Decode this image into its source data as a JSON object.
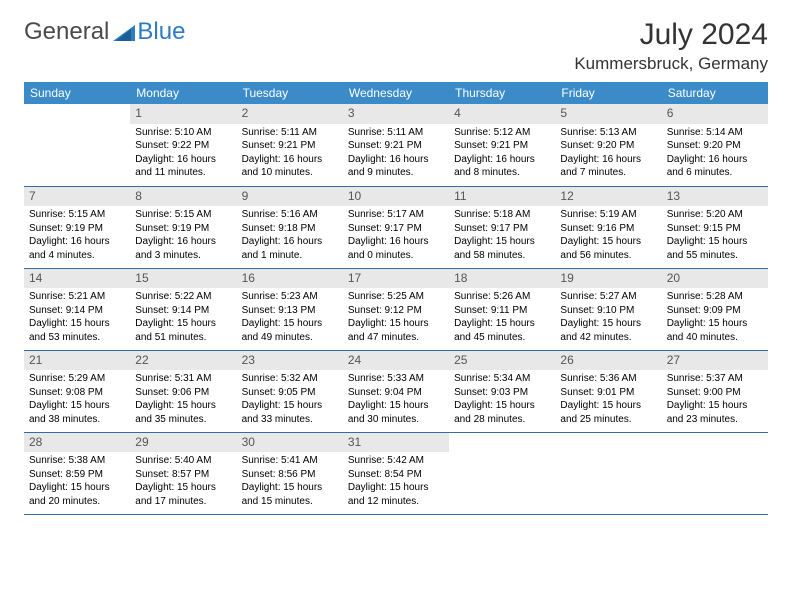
{
  "logo": {
    "text1": "General",
    "text2": "Blue"
  },
  "title": "July 2024",
  "location": "Kummersbruck, Germany",
  "day_headers": [
    "Sunday",
    "Monday",
    "Tuesday",
    "Wednesday",
    "Thursday",
    "Friday",
    "Saturday"
  ],
  "colors": {
    "header_bg": "#3b8bc8",
    "header_fg": "#ffffff",
    "daynum_bg": "#e8e8e8",
    "row_border": "#2f6ea5",
    "logo_blue": "#2f7bbf"
  },
  "weeks": [
    [
      null,
      {
        "n": "1",
        "sunrise": "5:10 AM",
        "sunset": "9:22 PM",
        "daylight": "16 hours and 11 minutes."
      },
      {
        "n": "2",
        "sunrise": "5:11 AM",
        "sunset": "9:21 PM",
        "daylight": "16 hours and 10 minutes."
      },
      {
        "n": "3",
        "sunrise": "5:11 AM",
        "sunset": "9:21 PM",
        "daylight": "16 hours and 9 minutes."
      },
      {
        "n": "4",
        "sunrise": "5:12 AM",
        "sunset": "9:21 PM",
        "daylight": "16 hours and 8 minutes."
      },
      {
        "n": "5",
        "sunrise": "5:13 AM",
        "sunset": "9:20 PM",
        "daylight": "16 hours and 7 minutes."
      },
      {
        "n": "6",
        "sunrise": "5:14 AM",
        "sunset": "9:20 PM",
        "daylight": "16 hours and 6 minutes."
      }
    ],
    [
      {
        "n": "7",
        "sunrise": "5:15 AM",
        "sunset": "9:19 PM",
        "daylight": "16 hours and 4 minutes."
      },
      {
        "n": "8",
        "sunrise": "5:15 AM",
        "sunset": "9:19 PM",
        "daylight": "16 hours and 3 minutes."
      },
      {
        "n": "9",
        "sunrise": "5:16 AM",
        "sunset": "9:18 PM",
        "daylight": "16 hours and 1 minute."
      },
      {
        "n": "10",
        "sunrise": "5:17 AM",
        "sunset": "9:17 PM",
        "daylight": "16 hours and 0 minutes."
      },
      {
        "n": "11",
        "sunrise": "5:18 AM",
        "sunset": "9:17 PM",
        "daylight": "15 hours and 58 minutes."
      },
      {
        "n": "12",
        "sunrise": "5:19 AM",
        "sunset": "9:16 PM",
        "daylight": "15 hours and 56 minutes."
      },
      {
        "n": "13",
        "sunrise": "5:20 AM",
        "sunset": "9:15 PM",
        "daylight": "15 hours and 55 minutes."
      }
    ],
    [
      {
        "n": "14",
        "sunrise": "5:21 AM",
        "sunset": "9:14 PM",
        "daylight": "15 hours and 53 minutes."
      },
      {
        "n": "15",
        "sunrise": "5:22 AM",
        "sunset": "9:14 PM",
        "daylight": "15 hours and 51 minutes."
      },
      {
        "n": "16",
        "sunrise": "5:23 AM",
        "sunset": "9:13 PM",
        "daylight": "15 hours and 49 minutes."
      },
      {
        "n": "17",
        "sunrise": "5:25 AM",
        "sunset": "9:12 PM",
        "daylight": "15 hours and 47 minutes."
      },
      {
        "n": "18",
        "sunrise": "5:26 AM",
        "sunset": "9:11 PM",
        "daylight": "15 hours and 45 minutes."
      },
      {
        "n": "19",
        "sunrise": "5:27 AM",
        "sunset": "9:10 PM",
        "daylight": "15 hours and 42 minutes."
      },
      {
        "n": "20",
        "sunrise": "5:28 AM",
        "sunset": "9:09 PM",
        "daylight": "15 hours and 40 minutes."
      }
    ],
    [
      {
        "n": "21",
        "sunrise": "5:29 AM",
        "sunset": "9:08 PM",
        "daylight": "15 hours and 38 minutes."
      },
      {
        "n": "22",
        "sunrise": "5:31 AM",
        "sunset": "9:06 PM",
        "daylight": "15 hours and 35 minutes."
      },
      {
        "n": "23",
        "sunrise": "5:32 AM",
        "sunset": "9:05 PM",
        "daylight": "15 hours and 33 minutes."
      },
      {
        "n": "24",
        "sunrise": "5:33 AM",
        "sunset": "9:04 PM",
        "daylight": "15 hours and 30 minutes."
      },
      {
        "n": "25",
        "sunrise": "5:34 AM",
        "sunset": "9:03 PM",
        "daylight": "15 hours and 28 minutes."
      },
      {
        "n": "26",
        "sunrise": "5:36 AM",
        "sunset": "9:01 PM",
        "daylight": "15 hours and 25 minutes."
      },
      {
        "n": "27",
        "sunrise": "5:37 AM",
        "sunset": "9:00 PM",
        "daylight": "15 hours and 23 minutes."
      }
    ],
    [
      {
        "n": "28",
        "sunrise": "5:38 AM",
        "sunset": "8:59 PM",
        "daylight": "15 hours and 20 minutes."
      },
      {
        "n": "29",
        "sunrise": "5:40 AM",
        "sunset": "8:57 PM",
        "daylight": "15 hours and 17 minutes."
      },
      {
        "n": "30",
        "sunrise": "5:41 AM",
        "sunset": "8:56 PM",
        "daylight": "15 hours and 15 minutes."
      },
      {
        "n": "31",
        "sunrise": "5:42 AM",
        "sunset": "8:54 PM",
        "daylight": "15 hours and 12 minutes."
      },
      null,
      null,
      null
    ]
  ],
  "labels": {
    "sunrise": "Sunrise:",
    "sunset": "Sunset:",
    "daylight": "Daylight:"
  }
}
